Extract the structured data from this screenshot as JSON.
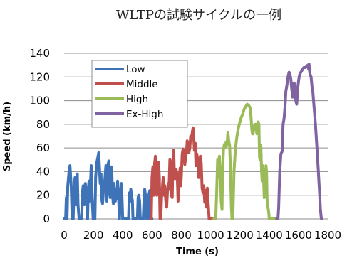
{
  "chart_data": {
    "type": "line",
    "title": "WLTPの試験サイクルの一例",
    "xlabel": "Time (s)",
    "ylabel": "Speed (km/h)",
    "xlim": [
      0,
      1800
    ],
    "ylim": [
      0,
      140
    ],
    "x_ticks": [
      "0",
      "200",
      "400",
      "600",
      "800",
      "1000",
      "1200",
      "1400",
      "1600",
      "1800"
    ],
    "y_ticks": [
      "0",
      "20",
      "40",
      "60",
      "80",
      "100",
      "120",
      "140"
    ],
    "grid": "horizontal",
    "legend_position": "top-left",
    "series": [
      {
        "name": "Low",
        "color": "#3f73b7",
        "points": [
          [
            0,
            0
          ],
          [
            10,
            0
          ],
          [
            15,
            18
          ],
          [
            20,
            0
          ],
          [
            25,
            28
          ],
          [
            35,
            42
          ],
          [
            40,
            45
          ],
          [
            48,
            28
          ],
          [
            55,
            0
          ],
          [
            62,
            0
          ],
          [
            68,
            28
          ],
          [
            75,
            35
          ],
          [
            80,
            12
          ],
          [
            85,
            30
          ],
          [
            90,
            38
          ],
          [
            95,
            12
          ],
          [
            102,
            0
          ],
          [
            120,
            0
          ],
          [
            125,
            22
          ],
          [
            130,
            28
          ],
          [
            138,
            12
          ],
          [
            145,
            30
          ],
          [
            150,
            22
          ],
          [
            155,
            12
          ],
          [
            160,
            0
          ],
          [
            165,
            25
          ],
          [
            170,
            32
          ],
          [
            175,
            15
          ],
          [
            180,
            30
          ],
          [
            185,
            45
          ],
          [
            190,
            20
          ],
          [
            198,
            0
          ],
          [
            210,
            0
          ],
          [
            215,
            35
          ],
          [
            222,
            47
          ],
          [
            230,
            52
          ],
          [
            236,
            56
          ],
          [
            240,
            47
          ],
          [
            246,
            30
          ],
          [
            252,
            38
          ],
          [
            256,
            17
          ],
          [
            262,
            13
          ],
          [
            270,
            27
          ],
          [
            278,
            33
          ],
          [
            285,
            45
          ],
          [
            292,
            15
          ],
          [
            298,
            45
          ],
          [
            305,
            49
          ],
          [
            310,
            23
          ],
          [
            315,
            18
          ],
          [
            320,
            40
          ],
          [
            325,
            44
          ],
          [
            330,
            20
          ],
          [
            336,
            13
          ],
          [
            340,
            30
          ],
          [
            345,
            20
          ],
          [
            350,
            15
          ],
          [
            355,
            25
          ],
          [
            360,
            17
          ],
          [
            365,
            32
          ],
          [
            370,
            22
          ],
          [
            378,
            0
          ],
          [
            385,
            20
          ],
          [
            390,
            30
          ],
          [
            395,
            18
          ],
          [
            400,
            0
          ],
          [
            420,
            0
          ],
          [
            430,
            0
          ],
          [
            440,
            0
          ],
          [
            445,
            22
          ],
          [
            450,
            15
          ],
          [
            455,
            25
          ],
          [
            460,
            20
          ],
          [
            466,
            15
          ],
          [
            470,
            0
          ],
          [
            490,
            0
          ],
          [
            500,
            0
          ],
          [
            505,
            18
          ],
          [
            510,
            20
          ],
          [
            515,
            15
          ],
          [
            520,
            0
          ],
          [
            540,
            0
          ],
          [
            545,
            15
          ],
          [
            550,
            25
          ],
          [
            555,
            20
          ],
          [
            560,
            15
          ],
          [
            565,
            0
          ],
          [
            575,
            0
          ],
          [
            578,
            20
          ],
          [
            585,
            24
          ],
          [
            590,
            22
          ],
          [
            592,
            0
          ],
          [
            600,
            0
          ]
        ]
      },
      {
        "name": "Middle",
        "color": "#c0504d",
        "points": [
          [
            590,
            0
          ],
          [
            595,
            0
          ],
          [
            600,
            35
          ],
          [
            606,
            44
          ],
          [
            612,
            20
          ],
          [
            618,
            47
          ],
          [
            623,
            53
          ],
          [
            628,
            35
          ],
          [
            633,
            20
          ],
          [
            638,
            40
          ],
          [
            645,
            48
          ],
          [
            650,
            35
          ],
          [
            655,
            0
          ],
          [
            660,
            0
          ],
          [
            665,
            18
          ],
          [
            670,
            25
          ],
          [
            676,
            35
          ],
          [
            682,
            20
          ],
          [
            688,
            28
          ],
          [
            694,
            15
          ],
          [
            700,
            10
          ],
          [
            705,
            22
          ],
          [
            712,
            30
          ],
          [
            716,
            25
          ],
          [
            722,
            50
          ],
          [
            728,
            45
          ],
          [
            732,
            20
          ],
          [
            738,
            18
          ],
          [
            743,
            50
          ],
          [
            748,
            58
          ],
          [
            752,
            40
          ],
          [
            758,
            34
          ],
          [
            764,
            42
          ],
          [
            772,
            38
          ],
          [
            778,
            15
          ],
          [
            782,
            32
          ],
          [
            788,
            37
          ],
          [
            792,
            43
          ],
          [
            796,
            28
          ],
          [
            800,
            35
          ],
          [
            806,
            55
          ],
          [
            812,
            59
          ],
          [
            818,
            53
          ],
          [
            824,
            46
          ],
          [
            830,
            52
          ],
          [
            836,
            57
          ],
          [
            840,
            66
          ],
          [
            846,
            63
          ],
          [
            852,
            56
          ],
          [
            858,
            60
          ],
          [
            864,
            70
          ],
          [
            870,
            68
          ],
          [
            876,
            74
          ],
          [
            880,
            77
          ],
          [
            884,
            70
          ],
          [
            890,
            58
          ],
          [
            895,
            64
          ],
          [
            900,
            45
          ],
          [
            906,
            55
          ],
          [
            912,
            50
          ],
          [
            918,
            35
          ],
          [
            924,
            44
          ],
          [
            930,
            53
          ],
          [
            936,
            47
          ],
          [
            942,
            26
          ],
          [
            948,
            22
          ],
          [
            954,
            28
          ],
          [
            960,
            14
          ],
          [
            966,
            24
          ],
          [
            972,
            10
          ],
          [
            978,
            26
          ],
          [
            985,
            10
          ],
          [
            990,
            0
          ],
          [
            1000,
            0
          ],
          [
            1020,
            0
          ],
          [
            1025,
            0
          ]
        ]
      },
      {
        "name": "High",
        "color": "#9bbb59",
        "points": [
          [
            1022,
            0
          ],
          [
            1025,
            0
          ],
          [
            1035,
            0
          ],
          [
            1042,
            25
          ],
          [
            1048,
            50
          ],
          [
            1054,
            35
          ],
          [
            1060,
            53
          ],
          [
            1066,
            40
          ],
          [
            1072,
            15
          ],
          [
            1078,
            8
          ],
          [
            1082,
            40
          ],
          [
            1088,
            58
          ],
          [
            1094,
            63
          ],
          [
            1100,
            60
          ],
          [
            1106,
            65
          ],
          [
            1112,
            62
          ],
          [
            1118,
            73
          ],
          [
            1124,
            66
          ],
          [
            1130,
            62
          ],
          [
            1136,
            40
          ],
          [
            1142,
            10
          ],
          [
            1146,
            0
          ],
          [
            1152,
            0
          ],
          [
            1160,
            40
          ],
          [
            1170,
            60
          ],
          [
            1180,
            70
          ],
          [
            1190,
            77
          ],
          [
            1200,
            82
          ],
          [
            1210,
            86
          ],
          [
            1220,
            89
          ],
          [
            1230,
            93
          ],
          [
            1240,
            95
          ],
          [
            1250,
            97
          ],
          [
            1260,
            96
          ],
          [
            1270,
            94
          ],
          [
            1276,
            86
          ],
          [
            1282,
            75
          ],
          [
            1286,
            72
          ],
          [
            1290,
            72
          ],
          [
            1296,
            77
          ],
          [
            1302,
            80
          ],
          [
            1308,
            80
          ],
          [
            1312,
            76
          ],
          [
            1316,
            72
          ],
          [
            1320,
            80
          ],
          [
            1325,
            82
          ],
          [
            1330,
            80
          ],
          [
            1334,
            52
          ],
          [
            1338,
            50
          ],
          [
            1343,
            62
          ],
          [
            1348,
            40
          ],
          [
            1352,
            32
          ],
          [
            1356,
            45
          ],
          [
            1360,
            40
          ],
          [
            1366,
            18
          ],
          [
            1372,
            20
          ],
          [
            1378,
            45
          ],
          [
            1382,
            40
          ],
          [
            1386,
            15
          ],
          [
            1392,
            10
          ],
          [
            1398,
            4
          ],
          [
            1400,
            0
          ],
          [
            1450,
            0
          ],
          [
            1455,
            0
          ]
        ]
      },
      {
        "name": "Ex-High",
        "color": "#8064a2",
        "points": [
          [
            1450,
            0
          ],
          [
            1460,
            0
          ],
          [
            1465,
            10
          ],
          [
            1472,
            40
          ],
          [
            1480,
            55
          ],
          [
            1488,
            57
          ],
          [
            1495,
            80
          ],
          [
            1502,
            85
          ],
          [
            1508,
            95
          ],
          [
            1514,
            108
          ],
          [
            1520,
            112
          ],
          [
            1528,
            120
          ],
          [
            1536,
            124
          ],
          [
            1542,
            122
          ],
          [
            1548,
            118
          ],
          [
            1554,
            110
          ],
          [
            1560,
            103
          ],
          [
            1566,
            107
          ],
          [
            1570,
            115
          ],
          [
            1576,
            113
          ],
          [
            1582,
            100
          ],
          [
            1588,
            97
          ],
          [
            1596,
            112
          ],
          [
            1602,
            118
          ],
          [
            1608,
            122
          ],
          [
            1616,
            124
          ],
          [
            1626,
            126
          ],
          [
            1636,
            128
          ],
          [
            1646,
            128
          ],
          [
            1656,
            129
          ],
          [
            1664,
            130
          ],
          [
            1668,
            127
          ],
          [
            1672,
            131
          ],
          [
            1676,
            124
          ],
          [
            1680,
            122
          ],
          [
            1686,
            120
          ],
          [
            1692,
            112
          ],
          [
            1698,
            108
          ],
          [
            1706,
            95
          ],
          [
            1716,
            80
          ],
          [
            1726,
            60
          ],
          [
            1736,
            40
          ],
          [
            1744,
            22
          ],
          [
            1750,
            8
          ],
          [
            1756,
            0
          ],
          [
            1760,
            0
          ]
        ]
      }
    ]
  }
}
